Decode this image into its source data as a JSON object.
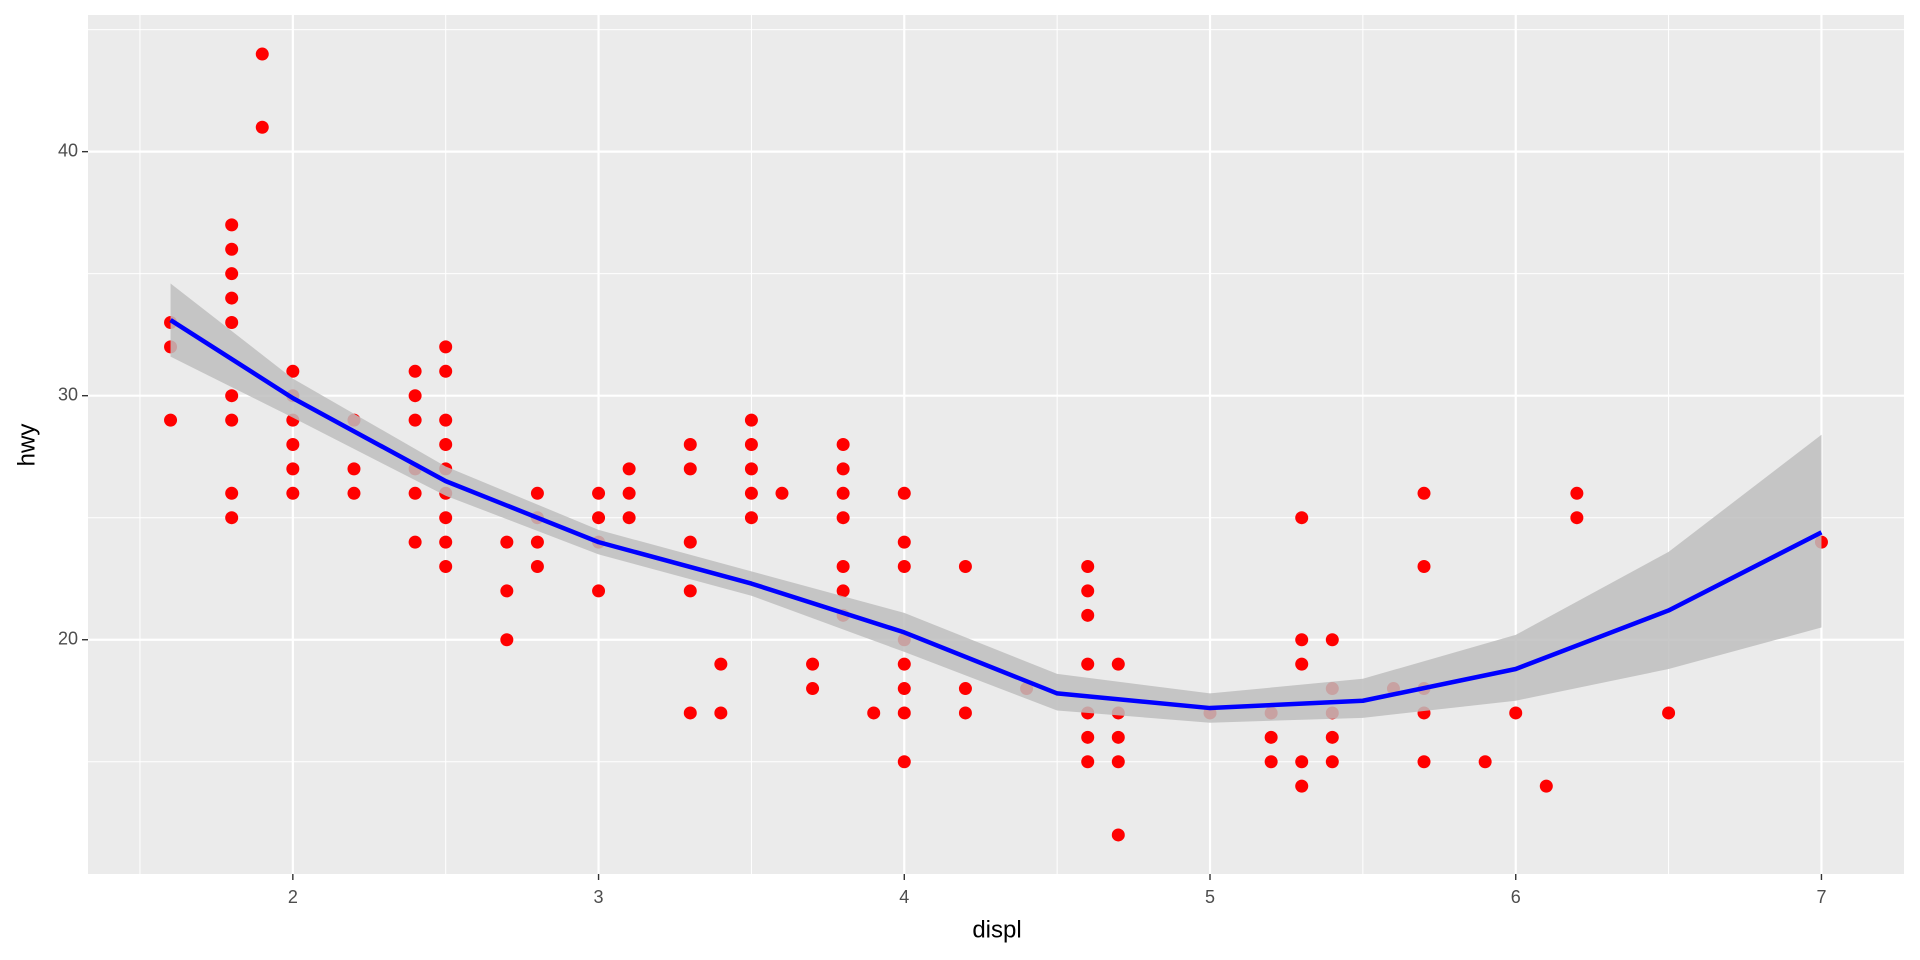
{
  "chart_data": {
    "type": "scatter",
    "x_label": "displ",
    "y_label": "hwy",
    "xlim": [
      1.33,
      7.27
    ],
    "ylim": [
      10.4,
      45.6
    ],
    "xticks": [
      2,
      3,
      4,
      5,
      6,
      7
    ],
    "yticks": [
      20,
      30,
      40
    ],
    "grid": true,
    "series": [
      {
        "color": "#ff0000",
        "x": [
          1.6,
          1.6,
          1.6,
          1.8,
          1.8,
          1.8,
          1.8,
          1.8,
          1.8,
          1.8,
          1.8,
          1.8,
          1.9,
          1.9,
          2,
          2,
          2,
          2,
          2,
          2,
          2.2,
          2.2,
          2.2,
          2.4,
          2.4,
          2.4,
          2.4,
          2.4,
          2.4,
          2.5,
          2.5,
          2.5,
          2.5,
          2.5,
          2.5,
          2.5,
          2.5,
          2.5,
          2.7,
          2.7,
          2.7,
          2.8,
          2.8,
          2.8,
          2.8,
          3,
          3,
          3,
          3,
          3.1,
          3.1,
          3.1,
          3.3,
          3.3,
          3.3,
          3.3,
          3.3,
          3.4,
          3.4,
          3.5,
          3.5,
          3.5,
          3.5,
          3.5,
          3.6,
          3.7,
          3.7,
          3.8,
          3.8,
          3.8,
          3.8,
          3.8,
          3.8,
          3.8,
          3.9,
          4,
          4,
          4,
          4,
          4,
          4,
          4,
          4,
          4.2,
          4.2,
          4.2,
          4.4,
          4.6,
          4.6,
          4.6,
          4.6,
          4.6,
          4.6,
          4.6,
          4.7,
          4.7,
          4.7,
          4.7,
          4.7,
          5,
          5.2,
          5.2,
          5.2,
          5.3,
          5.3,
          5.3,
          5.3,
          5.3,
          5.4,
          5.4,
          5.4,
          5.4,
          5.4,
          5.6,
          5.7,
          5.7,
          5.7,
          5.7,
          5.7,
          5.9,
          6,
          6.1,
          6.2,
          6.2,
          6.5,
          7
        ],
        "y": [
          33,
          32,
          29,
          37,
          36,
          35,
          34,
          33,
          30,
          29,
          26,
          25,
          44,
          41,
          31,
          30,
          29,
          28,
          27,
          26,
          29,
          27,
          26,
          31,
          30,
          29,
          27,
          26,
          24,
          32,
          31,
          29,
          28,
          27,
          26,
          25,
          24,
          23,
          24,
          22,
          20,
          26,
          25,
          24,
          23,
          26,
          25,
          24,
          22,
          27,
          26,
          25,
          28,
          27,
          24,
          22,
          17,
          19,
          17,
          29,
          28,
          27,
          26,
          25,
          26,
          19,
          18,
          28,
          27,
          26,
          25,
          23,
          22,
          21,
          17,
          26,
          24,
          23,
          20,
          19,
          18,
          17,
          15,
          23,
          18,
          17,
          18,
          23,
          22,
          21,
          19,
          17,
          16,
          15,
          19,
          17,
          16,
          15,
          12,
          17,
          17,
          16,
          15,
          25,
          20,
          19,
          15,
          14,
          20,
          18,
          17,
          16,
          15,
          18,
          26,
          23,
          18,
          17,
          15,
          15,
          17,
          14,
          26,
          25,
          17,
          24
        ]
      }
    ],
    "smooth": {
      "color": "#0000ff",
      "band_color": "#bebebe",
      "x": [
        1.6,
        2,
        2.5,
        3,
        3.5,
        4,
        4.5,
        5,
        5.5,
        6,
        6.5,
        7
      ],
      "y": [
        33.1,
        29.9,
        26.5,
        24.0,
        22.3,
        20.3,
        17.8,
        17.2,
        17.5,
        18.8,
        21.2,
        24.4
      ],
      "lower": [
        31.6,
        29.1,
        25.9,
        23.5,
        21.8,
        19.5,
        17.1,
        16.6,
        16.8,
        17.5,
        18.8,
        20.5
      ],
      "upper": [
        34.6,
        30.7,
        27.1,
        24.5,
        22.8,
        21.1,
        18.6,
        17.8,
        18.4,
        20.2,
        23.6,
        28.4
      ]
    }
  }
}
